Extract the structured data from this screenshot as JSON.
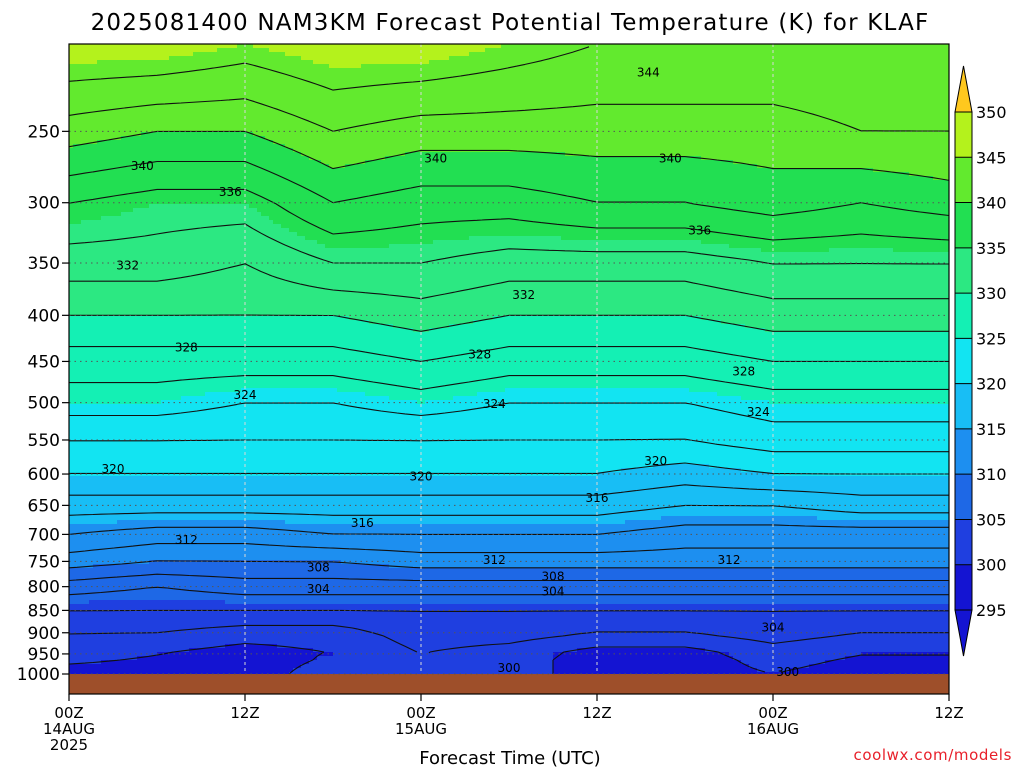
{
  "chart_data": {
    "type": "heatmap",
    "title": "2025081400 NAM3KM Forecast Potential Temperature (K) for KLAF",
    "xlabel": "Forecast Time (UTC)",
    "ylabel": "",
    "x_ticks": [
      {
        "hour": 0,
        "l1": "00Z",
        "l2": "14AUG",
        "l3": "2025"
      },
      {
        "hour": 12,
        "l1": "12Z",
        "l2": "",
        "l3": ""
      },
      {
        "hour": 24,
        "l1": "00Z",
        "l2": "15AUG",
        "l3": ""
      },
      {
        "hour": 36,
        "l1": "12Z",
        "l2": "",
        "l3": ""
      },
      {
        "hour": 48,
        "l1": "00Z",
        "l2": "16AUG",
        "l3": ""
      },
      {
        "hour": 60,
        "l1": "12Z",
        "l2": "",
        "l3": ""
      }
    ],
    "xlim_hours": [
      0,
      60
    ],
    "y_ticks": [
      250,
      300,
      350,
      400,
      450,
      500,
      550,
      600,
      650,
      700,
      750,
      800,
      850,
      900,
      950,
      1000
    ],
    "ylim_hPa": [
      200,
      1000
    ],
    "y_scale": "log-pressure",
    "grid": true,
    "colorbar": {
      "levels": [
        295,
        300,
        305,
        310,
        315,
        320,
        325,
        330,
        335,
        340,
        345,
        350
      ],
      "colors": [
        "#1414d2",
        "#1f3fe0",
        "#1e68e6",
        "#1d8ff0",
        "#18bef5",
        "#12e4f2",
        "#14f0b4",
        "#2ce882",
        "#22df52",
        "#62ea2e",
        "#b4f21c",
        "#fff21a",
        "#ffc81e"
      ],
      "below_color": "#1414d2",
      "above_color": "#ffc81e"
    },
    "levels_hPa": [
      200,
      250,
      300,
      350,
      400,
      450,
      500,
      550,
      600,
      650,
      700,
      750,
      800,
      850,
      900,
      950,
      1000
    ],
    "x_hours": [
      0,
      6,
      12,
      18,
      24,
      30,
      36,
      42,
      48,
      54,
      60
    ],
    "theta_K": [
      [
        346,
        346,
        345,
        346,
        346,
        345,
        344,
        344,
        344,
        344,
        344
      ],
      [
        341,
        340,
        340,
        342,
        341,
        341,
        341,
        341,
        341,
        342,
        342
      ],
      [
        336,
        335,
        335,
        338,
        337,
        337,
        338,
        338,
        339,
        338,
        339
      ],
      [
        333,
        333,
        332,
        334,
        334,
        333,
        333,
        333,
        334,
        334,
        334
      ],
      [
        330,
        330,
        330,
        330,
        331,
        330,
        330,
        330,
        331,
        331,
        331
      ],
      [
        327,
        327,
        327,
        327,
        328,
        327,
        327,
        327,
        328,
        328,
        328
      ],
      [
        325,
        325,
        324,
        324,
        325,
        324,
        324,
        324,
        325,
        325,
        325
      ],
      [
        322,
        322,
        322,
        322,
        322,
        322,
        322,
        322,
        323,
        323,
        323
      ],
      [
        320,
        320,
        320,
        320,
        320,
        320,
        320,
        319,
        320,
        320,
        320
      ],
      [
        317,
        317,
        317,
        317,
        317,
        317,
        317,
        316,
        316,
        317,
        317
      ],
      [
        314,
        313,
        313,
        314,
        314,
        314,
        314,
        313,
        313,
        313,
        313
      ],
      [
        311,
        310,
        310,
        310,
        311,
        311,
        311,
        311,
        311,
        311,
        311
      ],
      [
        307,
        306,
        307,
        307,
        307,
        307,
        307,
        307,
        307,
        307,
        307
      ],
      [
        304,
        304,
        304,
        304,
        304,
        304,
        304,
        304,
        304,
        304,
        304
      ],
      [
        302,
        302,
        301,
        301,
        303,
        303,
        302,
        302,
        303,
        302,
        302
      ],
      [
        301,
        300,
        299,
        300,
        302,
        301,
        299,
        299,
        301,
        300,
        300
      ],
      [
        299,
        299,
        299,
        301,
        302,
        301,
        299,
        299,
        300,
        299,
        299
      ]
    ],
    "contour_labels": [
      {
        "text": "344",
        "hour": 39.5,
        "hPa": 215
      },
      {
        "text": "340",
        "hour": 5,
        "hPa": 273
      },
      {
        "text": "340",
        "hour": 25,
        "hPa": 268
      },
      {
        "text": "340",
        "hour": 41,
        "hPa": 268
      },
      {
        "text": "336",
        "hour": 11,
        "hPa": 292
      },
      {
        "text": "336",
        "hour": 43,
        "hPa": 322
      },
      {
        "text": "332",
        "hour": 4,
        "hPa": 352
      },
      {
        "text": "332",
        "hour": 31,
        "hPa": 380
      },
      {
        "text": "328",
        "hour": 8,
        "hPa": 434
      },
      {
        "text": "328",
        "hour": 28,
        "hPa": 442
      },
      {
        "text": "328",
        "hour": 46,
        "hPa": 462
      },
      {
        "text": "324",
        "hour": 12,
        "hPa": 490
      },
      {
        "text": "324",
        "hour": 29,
        "hPa": 502
      },
      {
        "text": "324",
        "hour": 47,
        "hPa": 512
      },
      {
        "text": "320",
        "hour": 3,
        "hPa": 592
      },
      {
        "text": "320",
        "hour": 24,
        "hPa": 604
      },
      {
        "text": "320",
        "hour": 40,
        "hPa": 580
      },
      {
        "text": "316",
        "hour": 20,
        "hPa": 680
      },
      {
        "text": "316",
        "hour": 36,
        "hPa": 638
      },
      {
        "text": "312",
        "hour": 8,
        "hPa": 710
      },
      {
        "text": "312",
        "hour": 29,
        "hPa": 747
      },
      {
        "text": "312",
        "hour": 45,
        "hPa": 747
      },
      {
        "text": "308",
        "hour": 17,
        "hPa": 762
      },
      {
        "text": "308",
        "hour": 33,
        "hPa": 780
      },
      {
        "text": "304",
        "hour": 17,
        "hPa": 805
      },
      {
        "text": "304",
        "hour": 33,
        "hPa": 810
      },
      {
        "text": "304",
        "hour": 48,
        "hPa": 888
      },
      {
        "text": "300",
        "hour": 30,
        "hPa": 985
      },
      {
        "text": "300",
        "hour": 49,
        "hPa": 995
      }
    ]
  },
  "credit": "coolwx.com/models",
  "colors": {
    "ground": "#9e4f2a",
    "grid": "#555555",
    "contour": "#111111"
  }
}
